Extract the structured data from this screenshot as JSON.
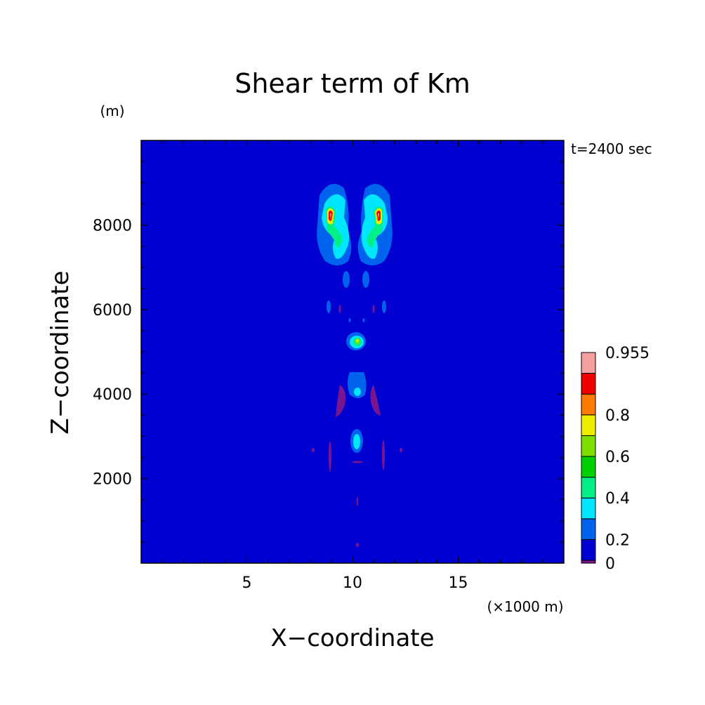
{
  "chart_data": {
    "type": "heatmap",
    "title": "Shear term of Km",
    "xlabel": "X−coordinate",
    "ylabel": "Z−coordinate",
    "x_unit": "(×1000 m)",
    "y_unit": "(m)",
    "time_label": "t=2400 sec",
    "xlim": [
      0,
      20
    ],
    "ylim": [
      0,
      10000
    ],
    "x_ticks": [
      5,
      10,
      15
    ],
    "y_ticks": [
      2000,
      4000,
      6000,
      8000
    ],
    "colorbar": {
      "levels": [
        0,
        0.1,
        0.2,
        0.3,
        0.4,
        0.5,
        0.6,
        0.7,
        0.8,
        0.9,
        0.955
      ],
      "tick_labels": [
        "0",
        "0.2",
        "0.4",
        "0.6",
        "0.8",
        "0.955"
      ],
      "tick_values": [
        0,
        0.2,
        0.4,
        0.6,
        0.8,
        0.955
      ],
      "colors": [
        "#7a1590",
        "#0000d0",
        "#0063ee",
        "#00e6ff",
        "#00ef86",
        "#00d000",
        "#7de000",
        "#f0ee00",
        "#ff7a00",
        "#f00000",
        "#f4a0a0"
      ]
    },
    "features": [
      {
        "x": 9.1,
        "z": 8100,
        "peak": 0.9
      },
      {
        "x": 11.4,
        "z": 8100,
        "peak": 0.9
      },
      {
        "x": 10.2,
        "z": 5250,
        "peak": 0.6
      },
      {
        "x": 10.2,
        "z": 4050,
        "peak": 0.2
      },
      {
        "x": 10.2,
        "z": 2950,
        "peak": 0.3
      }
    ],
    "grid": false
  }
}
